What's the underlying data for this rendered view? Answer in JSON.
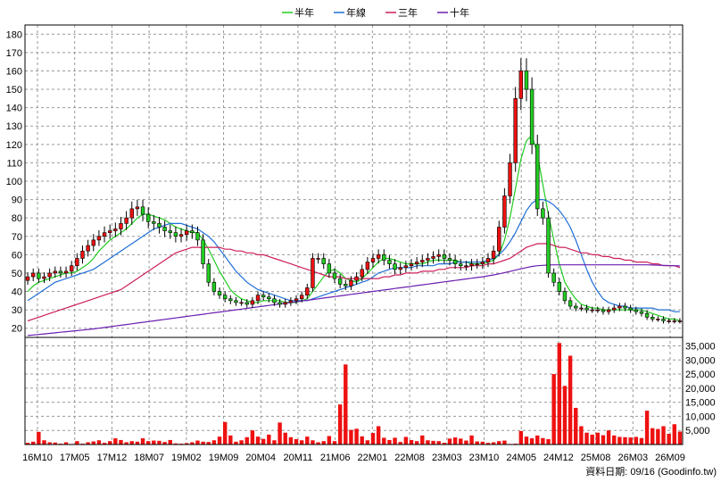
{
  "legend": [
    {
      "name": "半年",
      "color": "#22cc22"
    },
    {
      "name": "年線",
      "color": "#1f6fd6"
    },
    {
      "name": "三年",
      "color": "#cc1f5a"
    },
    {
      "name": "十年",
      "color": "#6a1fb0"
    }
  ],
  "footer": "資料日期: 09/16  (Goodinfo.tw)",
  "chart_data": {
    "type": "candlestick-volume",
    "x_ticks": [
      "16M10",
      "17M05",
      "17M12",
      "18M07",
      "19M02",
      "19M09",
      "20M04",
      "20M11",
      "21M06",
      "22M01",
      "22M08",
      "23M03",
      "23M10",
      "24M05",
      "24M12",
      "25M08",
      "26M03",
      "26M09"
    ],
    "price_axis": {
      "ticks": [
        20,
        30,
        40,
        50,
        60,
        70,
        80,
        90,
        100,
        110,
        120,
        130,
        140,
        150,
        160,
        170,
        180
      ],
      "range": [
        15,
        185
      ]
    },
    "volume_axis": {
      "ticks": [
        "5,000",
        "10,000",
        "15,000",
        "20,000",
        "25,000",
        "30,000",
        "35,000"
      ],
      "tick_values": [
        5000,
        10000,
        15000,
        20000,
        25000,
        30000,
        35000
      ],
      "range": [
        0,
        38000
      ]
    },
    "months": 120,
    "close": [
      48,
      50,
      47,
      48,
      50,
      51,
      50,
      51,
      54,
      58,
      62,
      65,
      68,
      70,
      72,
      73,
      74,
      77,
      80,
      85,
      86,
      82,
      78,
      77,
      75,
      73,
      72,
      70,
      71,
      73,
      72,
      68,
      55,
      45,
      40,
      38,
      36,
      35,
      34,
      34,
      33,
      35,
      38,
      37,
      36,
      34,
      33,
      34,
      35,
      36,
      38,
      42,
      58,
      58,
      55,
      50,
      47,
      44,
      43,
      46,
      48,
      52,
      56,
      58,
      60,
      57,
      55,
      52,
      53,
      54,
      55,
      56,
      57,
      58,
      59,
      60,
      58,
      57,
      55,
      54,
      54,
      55,
      55,
      56,
      58,
      62,
      75,
      92,
      110,
      145,
      160,
      150,
      120,
      85,
      80,
      50,
      45,
      40,
      35,
      32,
      31,
      31,
      30,
      30,
      30,
      29,
      30,
      31,
      32,
      31,
      30,
      29,
      28,
      26,
      25,
      25,
      24,
      24,
      24,
      24
    ],
    "ma_half": [
      40,
      43,
      45,
      46,
      47,
      48,
      49,
      50,
      50,
      51,
      53,
      55,
      58,
      62,
      65,
      68,
      70,
      72,
      74,
      77,
      80,
      82,
      82,
      81,
      80,
      79,
      77,
      75,
      74,
      73,
      72,
      72,
      68,
      63,
      57,
      51,
      46,
      41,
      38,
      36,
      35,
      34,
      34,
      35,
      35,
      35,
      35,
      34,
      34,
      34,
      35,
      36,
      40,
      44,
      48,
      51,
      52,
      50,
      47,
      46,
      45,
      47,
      50,
      53,
      56,
      58,
      58,
      57,
      56,
      55,
      55,
      55,
      55,
      56,
      57,
      57,
      57,
      57,
      57,
      56,
      56,
      55,
      55,
      55,
      56,
      57,
      60,
      68,
      80,
      96,
      112,
      122,
      125,
      115,
      98,
      82,
      68,
      55,
      45,
      40,
      36,
      33,
      32,
      31,
      31,
      30,
      30,
      30,
      30,
      30,
      30,
      30,
      30,
      29,
      28,
      27,
      26,
      25,
      25,
      24
    ],
    "ma_year": [
      35,
      37,
      39,
      41,
      43,
      45,
      46,
      47,
      48,
      49,
      50,
      51,
      52,
      54,
      56,
      58,
      60,
      62,
      64,
      66,
      68,
      70,
      72,
      74,
      75,
      76,
      77,
      77,
      77,
      76,
      75,
      74,
      72,
      70,
      67,
      63,
      59,
      55,
      51,
      48,
      45,
      43,
      41,
      40,
      39,
      38,
      37,
      36,
      35,
      35,
      35,
      35,
      36,
      37,
      38,
      39,
      40,
      41,
      42,
      43,
      44,
      45,
      46,
      48,
      50,
      51,
      52,
      53,
      53,
      53,
      53,
      54,
      54,
      54,
      54,
      55,
      55,
      55,
      56,
      56,
      56,
      56,
      56,
      56,
      57,
      58,
      60,
      63,
      67,
      72,
      78,
      84,
      88,
      90,
      90,
      89,
      87,
      84,
      80,
      75,
      68,
      60,
      52,
      45,
      40,
      36,
      34,
      33,
      32,
      32,
      31,
      31,
      31,
      31,
      31,
      30,
      30,
      30,
      29,
      29
    ],
    "ma_3y": [
      24,
      25,
      26,
      27,
      28,
      29,
      30,
      31,
      32,
      33,
      34,
      35,
      36,
      37,
      38,
      39,
      40,
      41,
      43,
      45,
      47,
      49,
      51,
      53,
      55,
      57,
      59,
      61,
      62,
      63,
      64,
      64,
      64,
      64,
      64,
      64,
      63,
      63,
      62,
      62,
      61,
      61,
      60,
      60,
      59,
      58,
      57,
      56,
      55,
      54,
      53,
      52,
      51,
      50,
      49,
      48,
      48,
      48,
      47,
      47,
      47,
      47,
      47,
      47,
      47,
      48,
      48,
      49,
      49,
      50,
      50,
      50,
      51,
      51,
      51,
      52,
      52,
      53,
      53,
      53,
      53,
      54,
      54,
      54,
      55,
      55,
      56,
      57,
      58,
      60,
      62,
      64,
      65,
      66,
      66,
      66,
      65,
      64,
      64,
      63,
      62,
      61,
      61,
      60,
      60,
      59,
      59,
      58,
      58,
      57,
      57,
      56,
      56,
      56,
      55,
      55,
      54,
      54,
      54,
      53
    ],
    "ma_10y": [
      16,
      16.3,
      16.6,
      16.9,
      17.2,
      17.5,
      17.8,
      18.1,
      18.4,
      18.7,
      19,
      19.3,
      19.6,
      20,
      20.4,
      20.8,
      21.2,
      21.6,
      22,
      22.4,
      22.8,
      23.2,
      23.6,
      24,
      24.4,
      24.8,
      25.2,
      25.6,
      26,
      26.4,
      26.8,
      27.2,
      27.6,
      28,
      28.4,
      28.8,
      29.2,
      29.6,
      30,
      30.4,
      30.8,
      31.2,
      31.6,
      32,
      32.4,
      32.8,
      33.2,
      33.6,
      34,
      34.4,
      34.8,
      35.2,
      35.6,
      36,
      36.4,
      36.8,
      37.2,
      37.6,
      38,
      38.4,
      38.8,
      39.2,
      39.6,
      40,
      40.4,
      40.8,
      41.2,
      41.6,
      42,
      42.4,
      42.8,
      43.2,
      43.6,
      44,
      44.4,
      44.8,
      45.2,
      45.6,
      46,
      46.4,
      46.8,
      47.2,
      47.6,
      48,
      48.5,
      49,
      49.6,
      50.2,
      50.9,
      51.6,
      52.3,
      53,
      53.6,
      54,
      54.2,
      54.4,
      54.5,
      54.5,
      54.5,
      54.5,
      54.5,
      54.5,
      54.5,
      54.5,
      54.5,
      54.5,
      54.5,
      54.5,
      54.5,
      54.5,
      54.5,
      54.5,
      54.5,
      54.5,
      54.4,
      54.3,
      54.2,
      54.1,
      54,
      53.9
    ],
    "volume": [
      600,
      1000,
      4500,
      1500,
      800,
      700,
      300,
      800,
      200,
      1200,
      300,
      800,
      1100,
      1500,
      600,
      1200,
      2200,
      1600,
      800,
      1200,
      1000,
      2200,
      1200,
      1400,
      1300,
      900,
      1600,
      400,
      300,
      500,
      800,
      1400,
      1000,
      900,
      1500,
      2800,
      8000,
      3200,
      1000,
      1500,
      2600,
      5000,
      2800,
      2000,
      3500,
      1500,
      7800,
      4200,
      2600,
      1900,
      1500,
      2800,
      1500,
      800,
      1200,
      3000,
      1200,
      14200,
      28400,
      5200,
      5600,
      2900,
      1500,
      4100,
      6500,
      2400,
      1600,
      2400,
      900,
      2700,
      1600,
      1200,
      3200,
      1500,
      1300,
      1200,
      600,
      2100,
      2500,
      2100,
      1400,
      3200,
      1100,
      1000,
      600,
      800,
      1200,
      1400,
      200,
      300,
      4800,
      2800,
      2200,
      3200,
      2300,
      1900,
      25000,
      36000,
      20800,
      31500,
      13000,
      6500,
      4200,
      3500,
      4200,
      3300,
      5000,
      3200,
      2700,
      2600,
      2500,
      2700,
      2300,
      12000,
      5800,
      5500,
      6500,
      3800,
      7200,
      4600
    ]
  }
}
